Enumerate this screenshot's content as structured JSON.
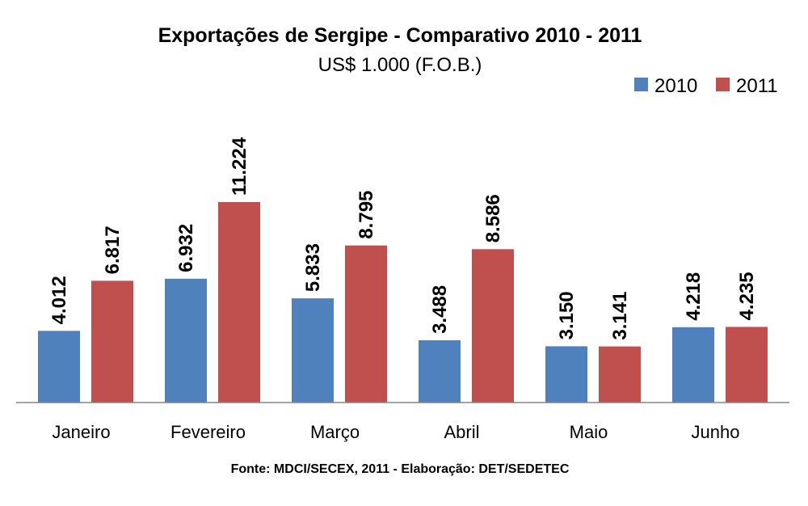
{
  "chart_data": {
    "type": "bar",
    "title": "Exportações de Sergipe - Comparativo 2010 - 2011",
    "subtitle": "US$ 1.000 (F.O.B.)",
    "categories": [
      "Janeiro",
      "Fevereiro",
      "Março",
      "Abril",
      "Maio",
      "Junho"
    ],
    "series": [
      {
        "name": "2010",
        "color": "#4F81BD",
        "values": [
          4012,
          6932,
          5833,
          3488,
          3150,
          4218
        ],
        "labels": [
          "4.012",
          "6.932",
          "5.833",
          "3.488",
          "3.150",
          "4.218"
        ]
      },
      {
        "name": "2011",
        "color": "#C0504D",
        "values": [
          6817,
          11224,
          8795,
          8586,
          3141,
          4235
        ],
        "labels": [
          "6.817",
          "11.224",
          "8.795",
          "8.586",
          "3.141",
          "4.235"
        ]
      }
    ],
    "ylim": [
      0,
      11224
    ],
    "grid": false,
    "legend_position": "top-right",
    "source": "Fonte: MDCI/SECEX, 2011 - Elaboração: DET/SEDETEC"
  }
}
